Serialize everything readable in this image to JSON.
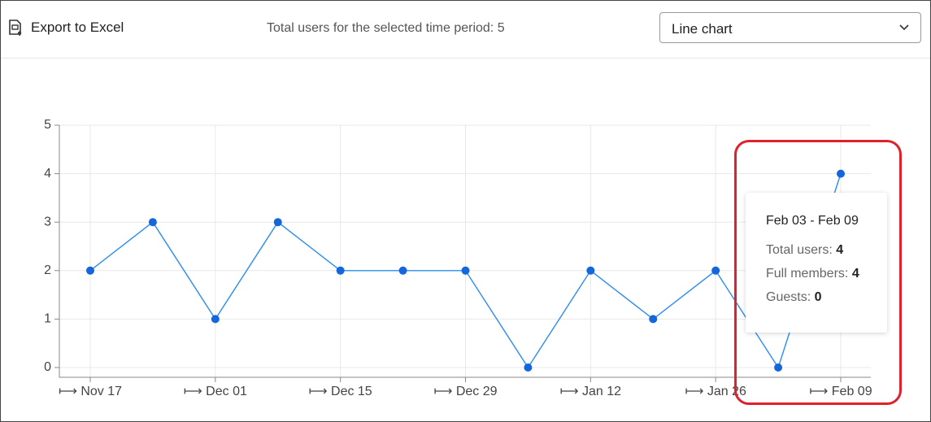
{
  "toolbar": {
    "export": "Export to Excel",
    "total": "Total users for the selected time period: 5",
    "view": "Line chart"
  },
  "chart_data": {
    "type": "line",
    "categories": [
      "⟼ Nov 17",
      null,
      "⟼ Dec 01",
      null,
      "⟼ Dec 15",
      null,
      "⟼ Dec 29",
      null,
      "⟼ Jan 12",
      null,
      "⟼ Jan 26",
      null,
      "⟼ Feb 09"
    ],
    "values": [
      2,
      3,
      1,
      3,
      2,
      2,
      2,
      0,
      2,
      1,
      2,
      0,
      4
    ],
    "color": "#2b8cf2",
    "marker_color": "#1466dc",
    "ylim": [
      0,
      5
    ],
    "yticks": [
      0,
      1,
      2,
      3,
      4,
      5
    ],
    "grid": true
  },
  "tooltip": {
    "title": "Feb 03 - Feb 09",
    "rows": [
      {
        "label": "Total users:",
        "value": 4
      },
      {
        "label": "Full members:",
        "value": 4
      },
      {
        "label": "Guests:",
        "value": 0
      }
    ]
  }
}
